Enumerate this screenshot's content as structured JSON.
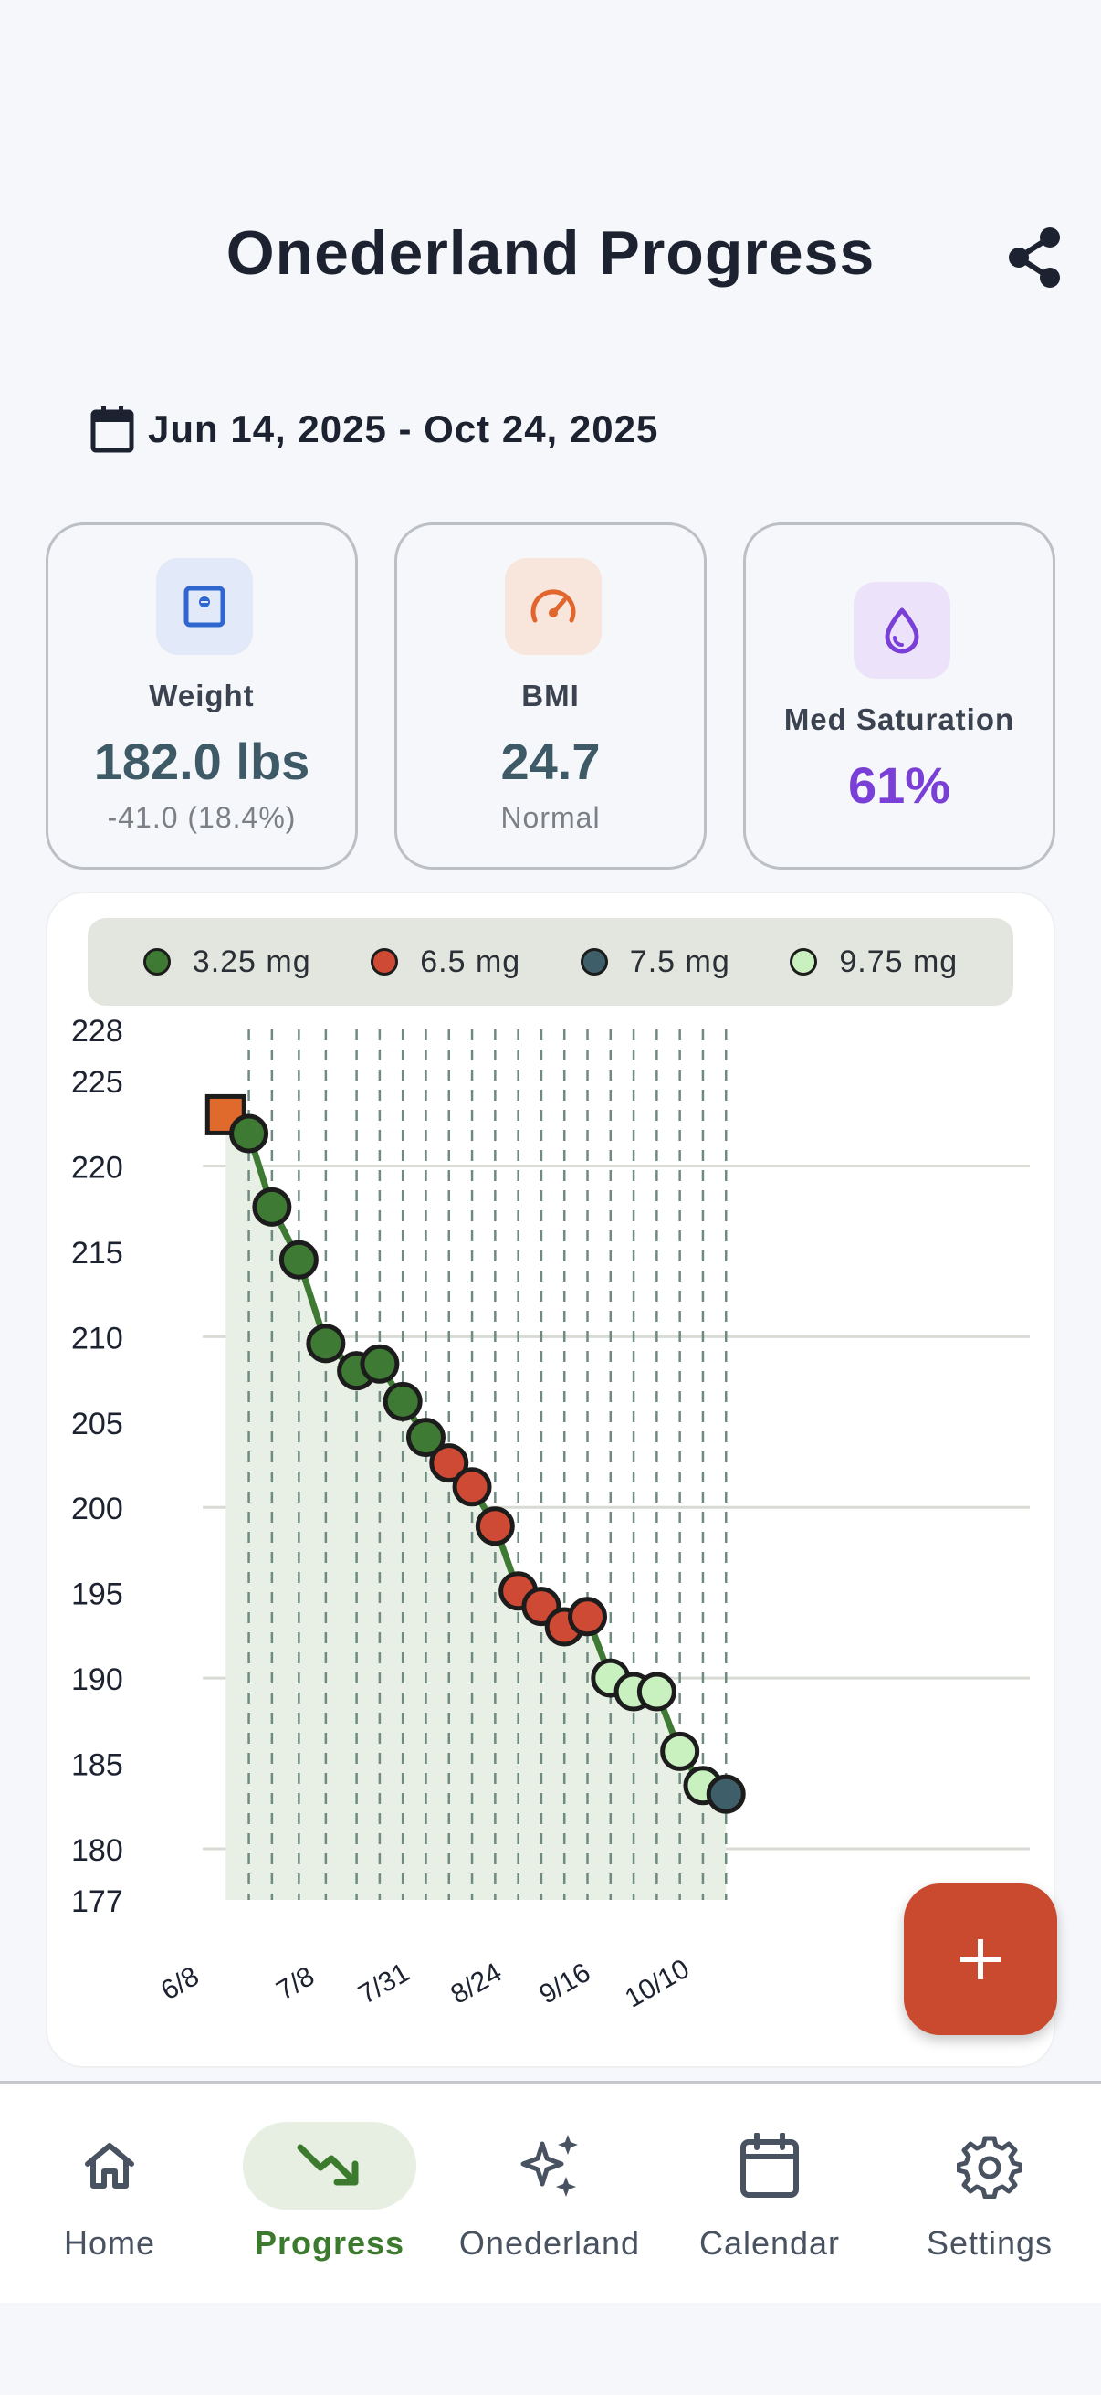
{
  "header": {
    "title": "Onederland Progress"
  },
  "date_range": {
    "text": "Jun 14, 2025 - Oct 24, 2025"
  },
  "stats": {
    "weight": {
      "label": "Weight",
      "value": "182.0 lbs",
      "sub": "-41.0 (18.4%)",
      "color": "#3d5a66",
      "tile_color": "#e2e9f8",
      "icon": "scale-icon"
    },
    "bmi": {
      "label": "BMI",
      "value": "24.7",
      "sub": "Normal",
      "color": "#3d5a66",
      "tile_color": "#f8e5dc",
      "icon": "gauge-icon"
    },
    "med": {
      "label": "Med Saturation",
      "value": "61%",
      "color": "#7a3fd6",
      "tile_color": "#ece3fa",
      "icon": "droplet-icon"
    }
  },
  "chart_data": {
    "type": "line",
    "x_type": "date",
    "ylim": [
      177,
      228
    ],
    "yticks": [
      228,
      225,
      220,
      215,
      210,
      205,
      200,
      195,
      190,
      185,
      180,
      177
    ],
    "xticks": [
      {
        "label": "6/8",
        "date": "2025-06-08"
      },
      {
        "label": "7/8",
        "date": "2025-07-08"
      },
      {
        "label": "7/31",
        "date": "2025-07-31"
      },
      {
        "label": "8/24",
        "date": "2025-08-24"
      },
      {
        "label": "9/16",
        "date": "2025-09-16"
      },
      {
        "label": "10/10",
        "date": "2025-10-10"
      }
    ],
    "start_point": {
      "date": "2025-06-14",
      "weight": 223.0
    },
    "series": [
      {
        "name": "3.25 mg",
        "color": "#3f7a35"
      },
      {
        "name": "6.5 mg",
        "color": "#cf4a34"
      },
      {
        "name": "7.5 mg",
        "color": "#3e5f6a"
      },
      {
        "name": "9.75 mg",
        "color": "#c9f0bf"
      }
    ],
    "line_color": "#3f7a35",
    "fill_color": "#e8efe4",
    "start_marker_color": "#e06a2c",
    "points": [
      {
        "date": "2025-06-20",
        "weight": 221.9,
        "series": 0
      },
      {
        "date": "2025-06-26",
        "weight": 217.6,
        "series": 0
      },
      {
        "date": "2025-07-03",
        "weight": 214.5,
        "series": 0
      },
      {
        "date": "2025-07-10",
        "weight": 209.6,
        "series": 0
      },
      {
        "date": "2025-07-18",
        "weight": 208.0,
        "series": 0
      },
      {
        "date": "2025-07-24",
        "weight": 208.4,
        "series": 0
      },
      {
        "date": "2025-07-30",
        "weight": 206.2,
        "series": 0
      },
      {
        "date": "2025-08-05",
        "weight": 204.1,
        "series": 0
      },
      {
        "date": "2025-08-11",
        "weight": 202.6,
        "series": 1
      },
      {
        "date": "2025-08-17",
        "weight": 201.2,
        "series": 1
      },
      {
        "date": "2025-08-23",
        "weight": 198.9,
        "series": 1
      },
      {
        "date": "2025-08-29",
        "weight": 195.1,
        "series": 1
      },
      {
        "date": "2025-09-04",
        "weight": 194.2,
        "series": 1
      },
      {
        "date": "2025-09-10",
        "weight": 193.0,
        "series": 1
      },
      {
        "date": "2025-09-16",
        "weight": 193.6,
        "series": 1
      },
      {
        "date": "2025-09-22",
        "weight": 190.0,
        "series": 3
      },
      {
        "date": "2025-09-28",
        "weight": 189.2,
        "series": 3
      },
      {
        "date": "2025-10-04",
        "weight": 189.2,
        "series": 3
      },
      {
        "date": "2025-10-10",
        "weight": 185.7,
        "series": 3
      },
      {
        "date": "2025-10-16",
        "weight": 183.7,
        "series": 3
      },
      {
        "date": "2025-10-22",
        "weight": 183.2,
        "series": 2
      }
    ]
  },
  "fab": {
    "label": "+"
  },
  "nav": [
    {
      "label": "Home",
      "icon": "home-icon",
      "active": false
    },
    {
      "label": "Progress",
      "icon": "trending-down-icon",
      "active": true
    },
    {
      "label": "Onederland",
      "icon": "sparkles-icon",
      "active": false
    },
    {
      "label": "Calendar",
      "icon": "calendar-icon",
      "active": false
    },
    {
      "label": "Settings",
      "icon": "gear-icon",
      "active": false
    }
  ]
}
